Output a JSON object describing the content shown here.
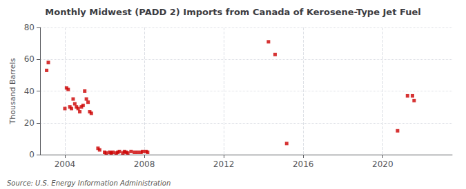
{
  "chart_data": {
    "type": "scatter",
    "title": "Monthly Midwest (PADD 2) Imports from Canada of Kerosene-Type Jet Fuel",
    "ylabel": "Thousand Barrels",
    "annotations": [
      "Source: U.S. Energy Information Administration"
    ],
    "color": "#cc0000",
    "marker": "square",
    "grid": true,
    "xlim": [
      2002.75,
      2023.5
    ],
    "ylim": [
      0,
      80
    ],
    "xticks": [
      2004,
      2008,
      2012,
      2016,
      2020
    ],
    "yticks": [
      0,
      20,
      40,
      60,
      80
    ],
    "x": [
      2003.083,
      2003.167,
      2004.0,
      2004.083,
      2004.167,
      2004.25,
      2004.333,
      2004.417,
      2004.5,
      2004.583,
      2004.667,
      2004.75,
      2004.833,
      2004.917,
      2005.0,
      2005.083,
      2005.167,
      2005.25,
      2005.333,
      2005.667,
      2005.75,
      2006.0,
      2006.083,
      2006.25,
      2006.333,
      2006.417,
      2006.583,
      2006.667,
      2006.75,
      2006.917,
      2007.0,
      2007.083,
      2007.167,
      2007.333,
      2007.5,
      2007.667,
      2007.833,
      2007.917,
      2008.083,
      2008.167,
      2014.25,
      2014.583,
      2015.167,
      2020.75,
      2021.25,
      2021.5,
      2021.583
    ],
    "values": [
      53.0,
      58.0,
      29.0,
      42.0,
      41.0,
      30.0,
      29.0,
      35.0,
      32.0,
      30.0,
      29.0,
      27.0,
      30.0,
      31.0,
      40.0,
      35.0,
      33.0,
      27.0,
      26.0,
      4.0,
      3.0,
      1.5,
      1.0,
      1.5,
      1.0,
      1.5,
      1.0,
      1.5,
      2.0,
      1.0,
      2.0,
      1.5,
      1.0,
      2.0,
      1.5,
      1.5,
      1.5,
      2.0,
      2.0,
      1.5,
      71.0,
      63.0,
      7.0,
      15.0,
      37.0,
      37.0,
      34.0
    ]
  }
}
